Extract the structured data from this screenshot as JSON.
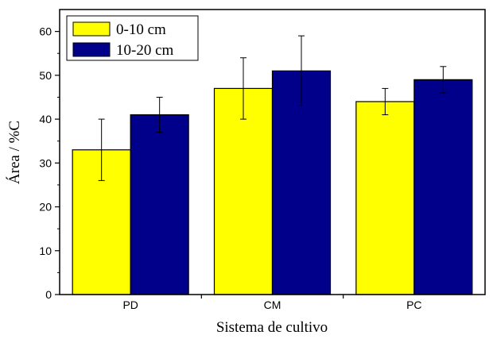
{
  "chart_data": {
    "type": "bar",
    "categories": [
      "PD",
      "CM",
      "PC"
    ],
    "series": [
      {
        "name": "0-10 cm",
        "color": "#ffff00",
        "values": [
          33,
          47,
          44
        ],
        "errors": [
          7,
          7,
          3
        ]
      },
      {
        "name": "10-20 cm",
        "color": "#00008b",
        "values": [
          41,
          51,
          49
        ],
        "errors": [
          4,
          8,
          3
        ]
      }
    ],
    "xlabel": "Sistema de cultivo",
    "ylabel": "Área / %C",
    "ylim": [
      0,
      65
    ],
    "yticks": [
      0,
      10,
      20,
      30,
      40,
      50,
      60
    ],
    "grid": false,
    "legend_position": "top-left"
  }
}
